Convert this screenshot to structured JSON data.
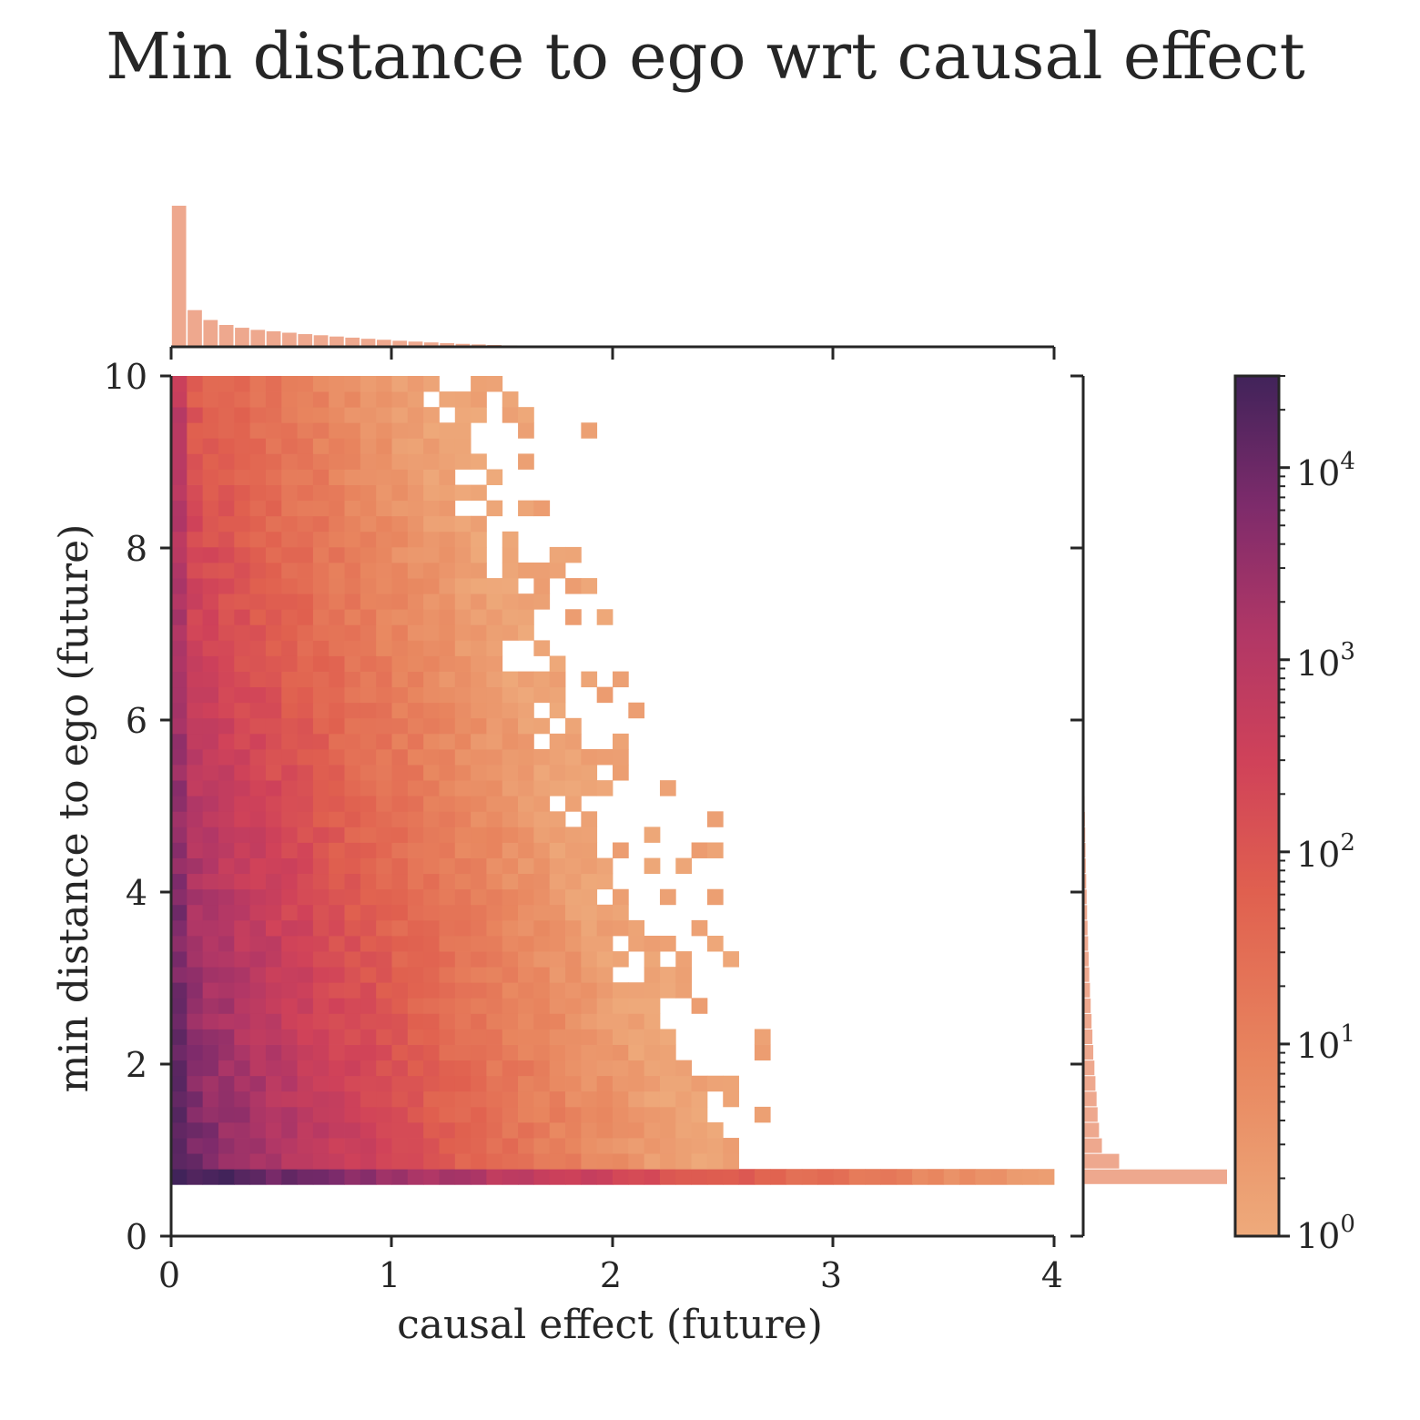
{
  "chart_data": {
    "type": "heatmap",
    "title": "Min distance to ego wrt causal effect",
    "xlabel": "causal effect (future)",
    "ylabel": "min distance to ego (future)",
    "xlim": [
      0,
      4
    ],
    "ylim": [
      0,
      10
    ],
    "x_ticks": [
      "0",
      "1",
      "2",
      "3",
      "4"
    ],
    "y_ticks": [
      "0",
      "2",
      "4",
      "6",
      "8",
      "10"
    ],
    "grid": false,
    "bins": {
      "x_bins": 56,
      "y_bins": 52,
      "x_range": [
        0,
        4
      ],
      "y_range": [
        0.6,
        10
      ]
    },
    "colorbar": {
      "scale": "log",
      "range": [
        1,
        30000
      ],
      "ticks": [
        {
          "base": "10",
          "exp": "0",
          "value": 1
        },
        {
          "base": "10",
          "exp": "1",
          "value": 10
        },
        {
          "base": "10",
          "exp": "2",
          "value": 100
        },
        {
          "base": "10",
          "exp": "3",
          "value": 1000
        },
        {
          "base": "10",
          "exp": "4",
          "value": 10000
        }
      ],
      "colormap": "flare"
    },
    "model": {
      "description_counts": "approximate bin counts, steep decay away from the origin",
      "peak_count": 30000
    },
    "marginal_x": {
      "values": [
        1.0,
        0.26,
        0.19,
        0.155,
        0.135,
        0.12,
        0.11,
        0.1,
        0.09,
        0.082,
        0.073,
        0.065,
        0.057,
        0.05,
        0.043,
        0.037,
        0.031,
        0.026,
        0.021,
        0.017,
        0.013,
        0.01,
        0.007,
        0.005,
        0.003,
        0.002,
        0.001,
        0.0007,
        0.0004
      ]
    },
    "marginal_y": {
      "values": [
        1.0,
        0.25,
        0.13,
        0.11,
        0.1,
        0.093,
        0.085,
        0.078,
        0.07,
        0.064,
        0.058,
        0.052,
        0.047,
        0.042,
        0.038,
        0.034,
        0.03,
        0.027,
        0.024,
        0.021,
        0.018,
        0.016,
        0.014,
        0.012,
        0.01,
        0.009,
        0.008,
        0.007,
        0.006,
        0.005,
        0.004,
        0.003,
        0.002
      ]
    },
    "colors": {
      "hist": "#eea88e",
      "axis": "#262626"
    }
  }
}
